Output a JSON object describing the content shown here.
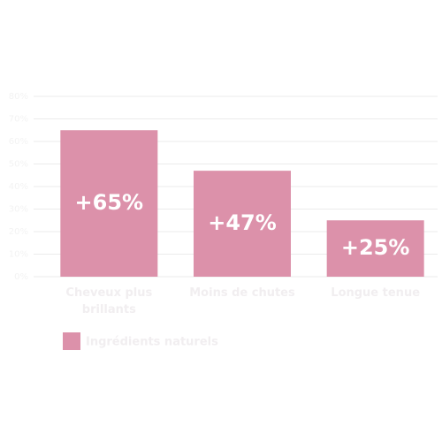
{
  "chart_data": {
    "type": "bar",
    "categories": [
      "Cheveux plus brillants",
      "Moins de chutes",
      "Longue tenue"
    ],
    "series": [
      {
        "name": "Ingrédients naturels",
        "color": "#dc91aa",
        "values": [
          65,
          47,
          25
        ],
        "value_labels": [
          "+65%",
          "+47%",
          "+25%"
        ]
      }
    ],
    "ylim": [
      0,
      80
    ],
    "yticks": [
      {
        "value": 0,
        "label": "0%"
      },
      {
        "value": 10,
        "label": "10%"
      },
      {
        "value": 20,
        "label": "20%"
      },
      {
        "value": 30,
        "label": "30%"
      },
      {
        "value": 40,
        "label": "40%"
      },
      {
        "value": 50,
        "label": "50%"
      },
      {
        "value": 60,
        "label": "60%"
      },
      {
        "value": 70,
        "label": "70%"
      },
      {
        "value": 80,
        "label": "80%"
      }
    ],
    "grid": true
  }
}
